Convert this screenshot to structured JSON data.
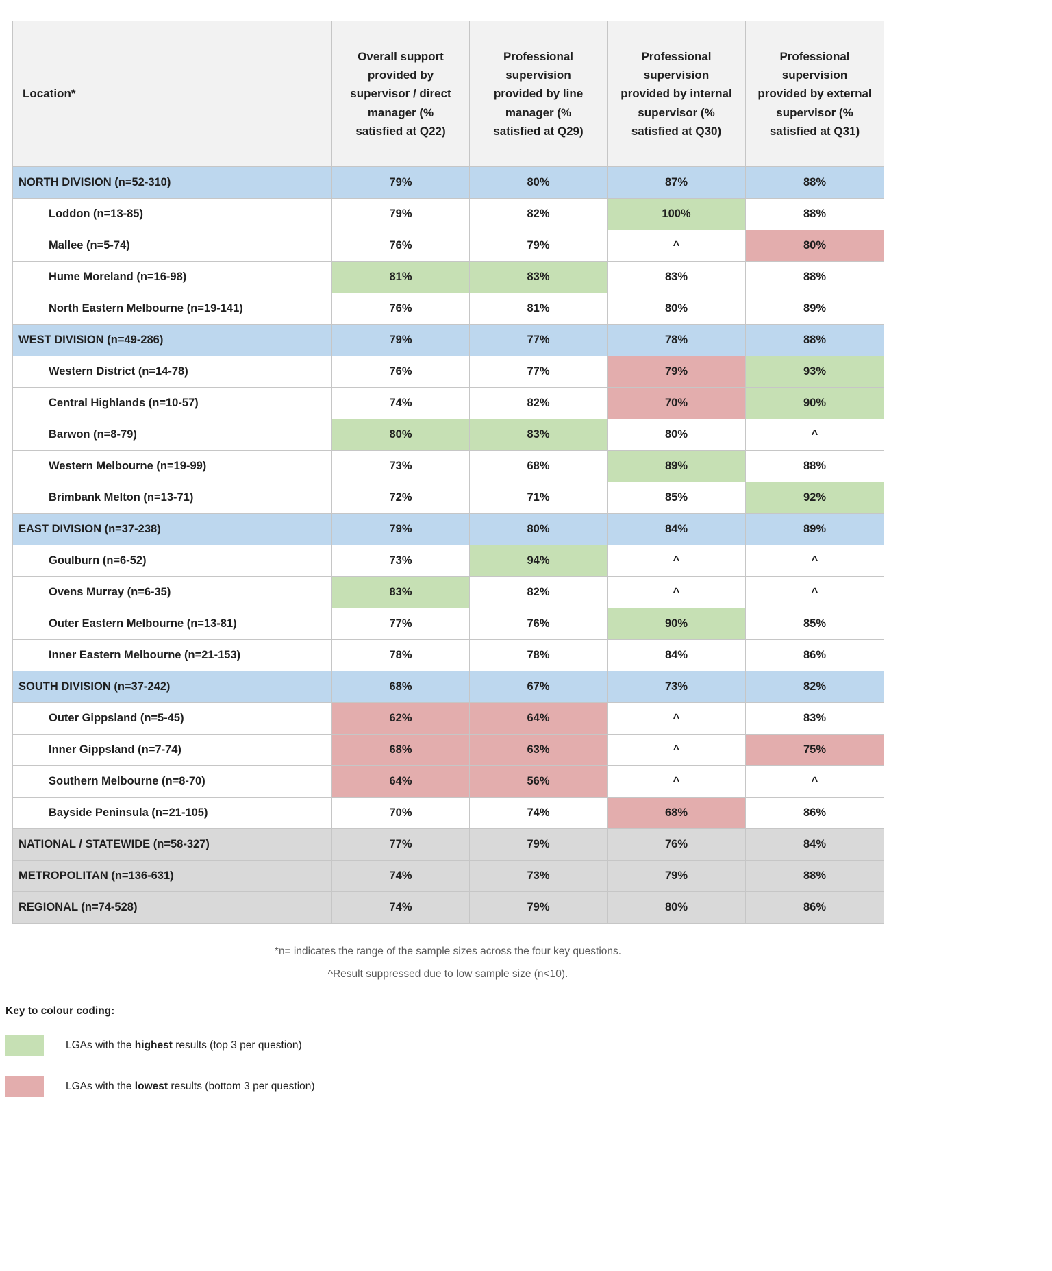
{
  "colors": {
    "division_blue": "#bdd7ee",
    "summary_gray": "#d9d9d9",
    "highest_green": "#c6e0b4",
    "lowest_red": "#e3adad",
    "header_bg": "#f2f2f2"
  },
  "table": {
    "columns": [
      "Location*",
      "Overall support provided by supervisor / direct manager (% satisfied at Q22)",
      "Professional supervision provided by line manager (% satisfied at Q29)",
      "Professional supervision provided by internal supervisor (% satisfied at Q30)",
      "Professional supervision provided by external supervisor (% satisfied at Q31)"
    ],
    "rows": [
      {
        "label": "NORTH DIVISION (n=52-310)",
        "type": "division",
        "values": [
          "79%",
          "80%",
          "87%",
          "88%"
        ],
        "highlights": [
          null,
          null,
          null,
          null
        ]
      },
      {
        "label": "Loddon (n=13-85)",
        "type": "lga",
        "values": [
          "79%",
          "82%",
          "100%",
          "88%"
        ],
        "highlights": [
          null,
          null,
          "high",
          null
        ]
      },
      {
        "label": "Mallee (n=5-74)",
        "type": "lga",
        "values": [
          "76%",
          "79%",
          "^",
          "80%"
        ],
        "highlights": [
          null,
          null,
          null,
          "low"
        ]
      },
      {
        "label": "Hume Moreland (n=16-98)",
        "type": "lga",
        "values": [
          "81%",
          "83%",
          "83%",
          "88%"
        ],
        "highlights": [
          "high",
          "high",
          null,
          null
        ]
      },
      {
        "label": "North Eastern Melbourne (n=19-141)",
        "type": "lga",
        "values": [
          "76%",
          "81%",
          "80%",
          "89%"
        ],
        "highlights": [
          null,
          null,
          null,
          null
        ]
      },
      {
        "label": "WEST DIVISION (n=49-286)",
        "type": "division",
        "values": [
          "79%",
          "77%",
          "78%",
          "88%"
        ],
        "highlights": [
          null,
          null,
          null,
          null
        ]
      },
      {
        "label": "Western District (n=14-78)",
        "type": "lga",
        "values": [
          "76%",
          "77%",
          "79%",
          "93%"
        ],
        "highlights": [
          null,
          null,
          "low",
          "high"
        ]
      },
      {
        "label": "Central Highlands (n=10-57)",
        "type": "lga",
        "values": [
          "74%",
          "82%",
          "70%",
          "90%"
        ],
        "highlights": [
          null,
          null,
          "low",
          "high"
        ]
      },
      {
        "label": "Barwon (n=8-79)",
        "type": "lga",
        "values": [
          "80%",
          "83%",
          "80%",
          "^"
        ],
        "highlights": [
          "high",
          "high",
          null,
          null
        ]
      },
      {
        "label": "Western Melbourne (n=19-99)",
        "type": "lga",
        "values": [
          "73%",
          "68%",
          "89%",
          "88%"
        ],
        "highlights": [
          null,
          null,
          "high",
          null
        ]
      },
      {
        "label": "Brimbank Melton (n=13-71)",
        "type": "lga",
        "values": [
          "72%",
          "71%",
          "85%",
          "92%"
        ],
        "highlights": [
          null,
          null,
          null,
          "high"
        ]
      },
      {
        "label": "EAST DIVISION (n=37-238)",
        "type": "division",
        "values": [
          "79%",
          "80%",
          "84%",
          "89%"
        ],
        "highlights": [
          null,
          null,
          null,
          null
        ]
      },
      {
        "label": "Goulburn (n=6-52)",
        "type": "lga",
        "values": [
          "73%",
          "94%",
          "^",
          "^"
        ],
        "highlights": [
          null,
          "high",
          null,
          null
        ]
      },
      {
        "label": "Ovens Murray (n=6-35)",
        "type": "lga",
        "values": [
          "83%",
          "82%",
          "^",
          "^"
        ],
        "highlights": [
          "high",
          null,
          null,
          null
        ]
      },
      {
        "label": "Outer Eastern Melbourne (n=13-81)",
        "type": "lga",
        "values": [
          "77%",
          "76%",
          "90%",
          "85%"
        ],
        "highlights": [
          null,
          null,
          "high",
          null
        ]
      },
      {
        "label": "Inner Eastern Melbourne (n=21-153)",
        "type": "lga",
        "values": [
          "78%",
          "78%",
          "84%",
          "86%"
        ],
        "highlights": [
          null,
          null,
          null,
          null
        ]
      },
      {
        "label": "SOUTH DIVISION (n=37-242)",
        "type": "division",
        "values": [
          "68%",
          "67%",
          "73%",
          "82%"
        ],
        "highlights": [
          null,
          null,
          null,
          null
        ]
      },
      {
        "label": "Outer Gippsland (n=5-45)",
        "type": "lga",
        "values": [
          "62%",
          "64%",
          "^",
          "83%"
        ],
        "highlights": [
          "low",
          "low",
          null,
          null
        ]
      },
      {
        "label": "Inner Gippsland (n=7-74)",
        "type": "lga",
        "values": [
          "68%",
          "63%",
          "^",
          "75%"
        ],
        "highlights": [
          "low",
          "low",
          null,
          "low"
        ]
      },
      {
        "label": "Southern Melbourne (n=8-70)",
        "type": "lga",
        "values": [
          "64%",
          "56%",
          "^",
          "^"
        ],
        "highlights": [
          "low",
          "low",
          null,
          null
        ]
      },
      {
        "label": "Bayside Peninsula (n=21-105)",
        "type": "lga",
        "values": [
          "70%",
          "74%",
          "68%",
          "86%"
        ],
        "highlights": [
          null,
          null,
          "low",
          null
        ]
      },
      {
        "label": "NATIONAL / STATEWIDE (n=58-327)",
        "type": "summary",
        "values": [
          "77%",
          "79%",
          "76%",
          "84%"
        ],
        "highlights": [
          null,
          null,
          null,
          null
        ]
      },
      {
        "label": "METROPOLITAN (n=136-631)",
        "type": "summary",
        "values": [
          "74%",
          "73%",
          "79%",
          "88%"
        ],
        "highlights": [
          null,
          null,
          null,
          null
        ]
      },
      {
        "label": "REGIONAL (n=74-528)",
        "type": "summary",
        "values": [
          "74%",
          "79%",
          "80%",
          "86%"
        ],
        "highlights": [
          null,
          null,
          null,
          null
        ]
      }
    ]
  },
  "footnotes": [
    "*n= indicates the range of the sample sizes across the four key questions.",
    "^Result suppressed due to low sample size (n<10)."
  ],
  "legend": {
    "title": "Key to colour coding:",
    "items": [
      {
        "swatch": "highest-green",
        "prefix": "LGAs with the ",
        "bold": "highest",
        "suffix": " results (top 3 per question)"
      },
      {
        "swatch": "lowest-red",
        "prefix": "LGAs with the ",
        "bold": "lowest",
        "suffix": " results (bottom 3 per question)"
      }
    ]
  }
}
